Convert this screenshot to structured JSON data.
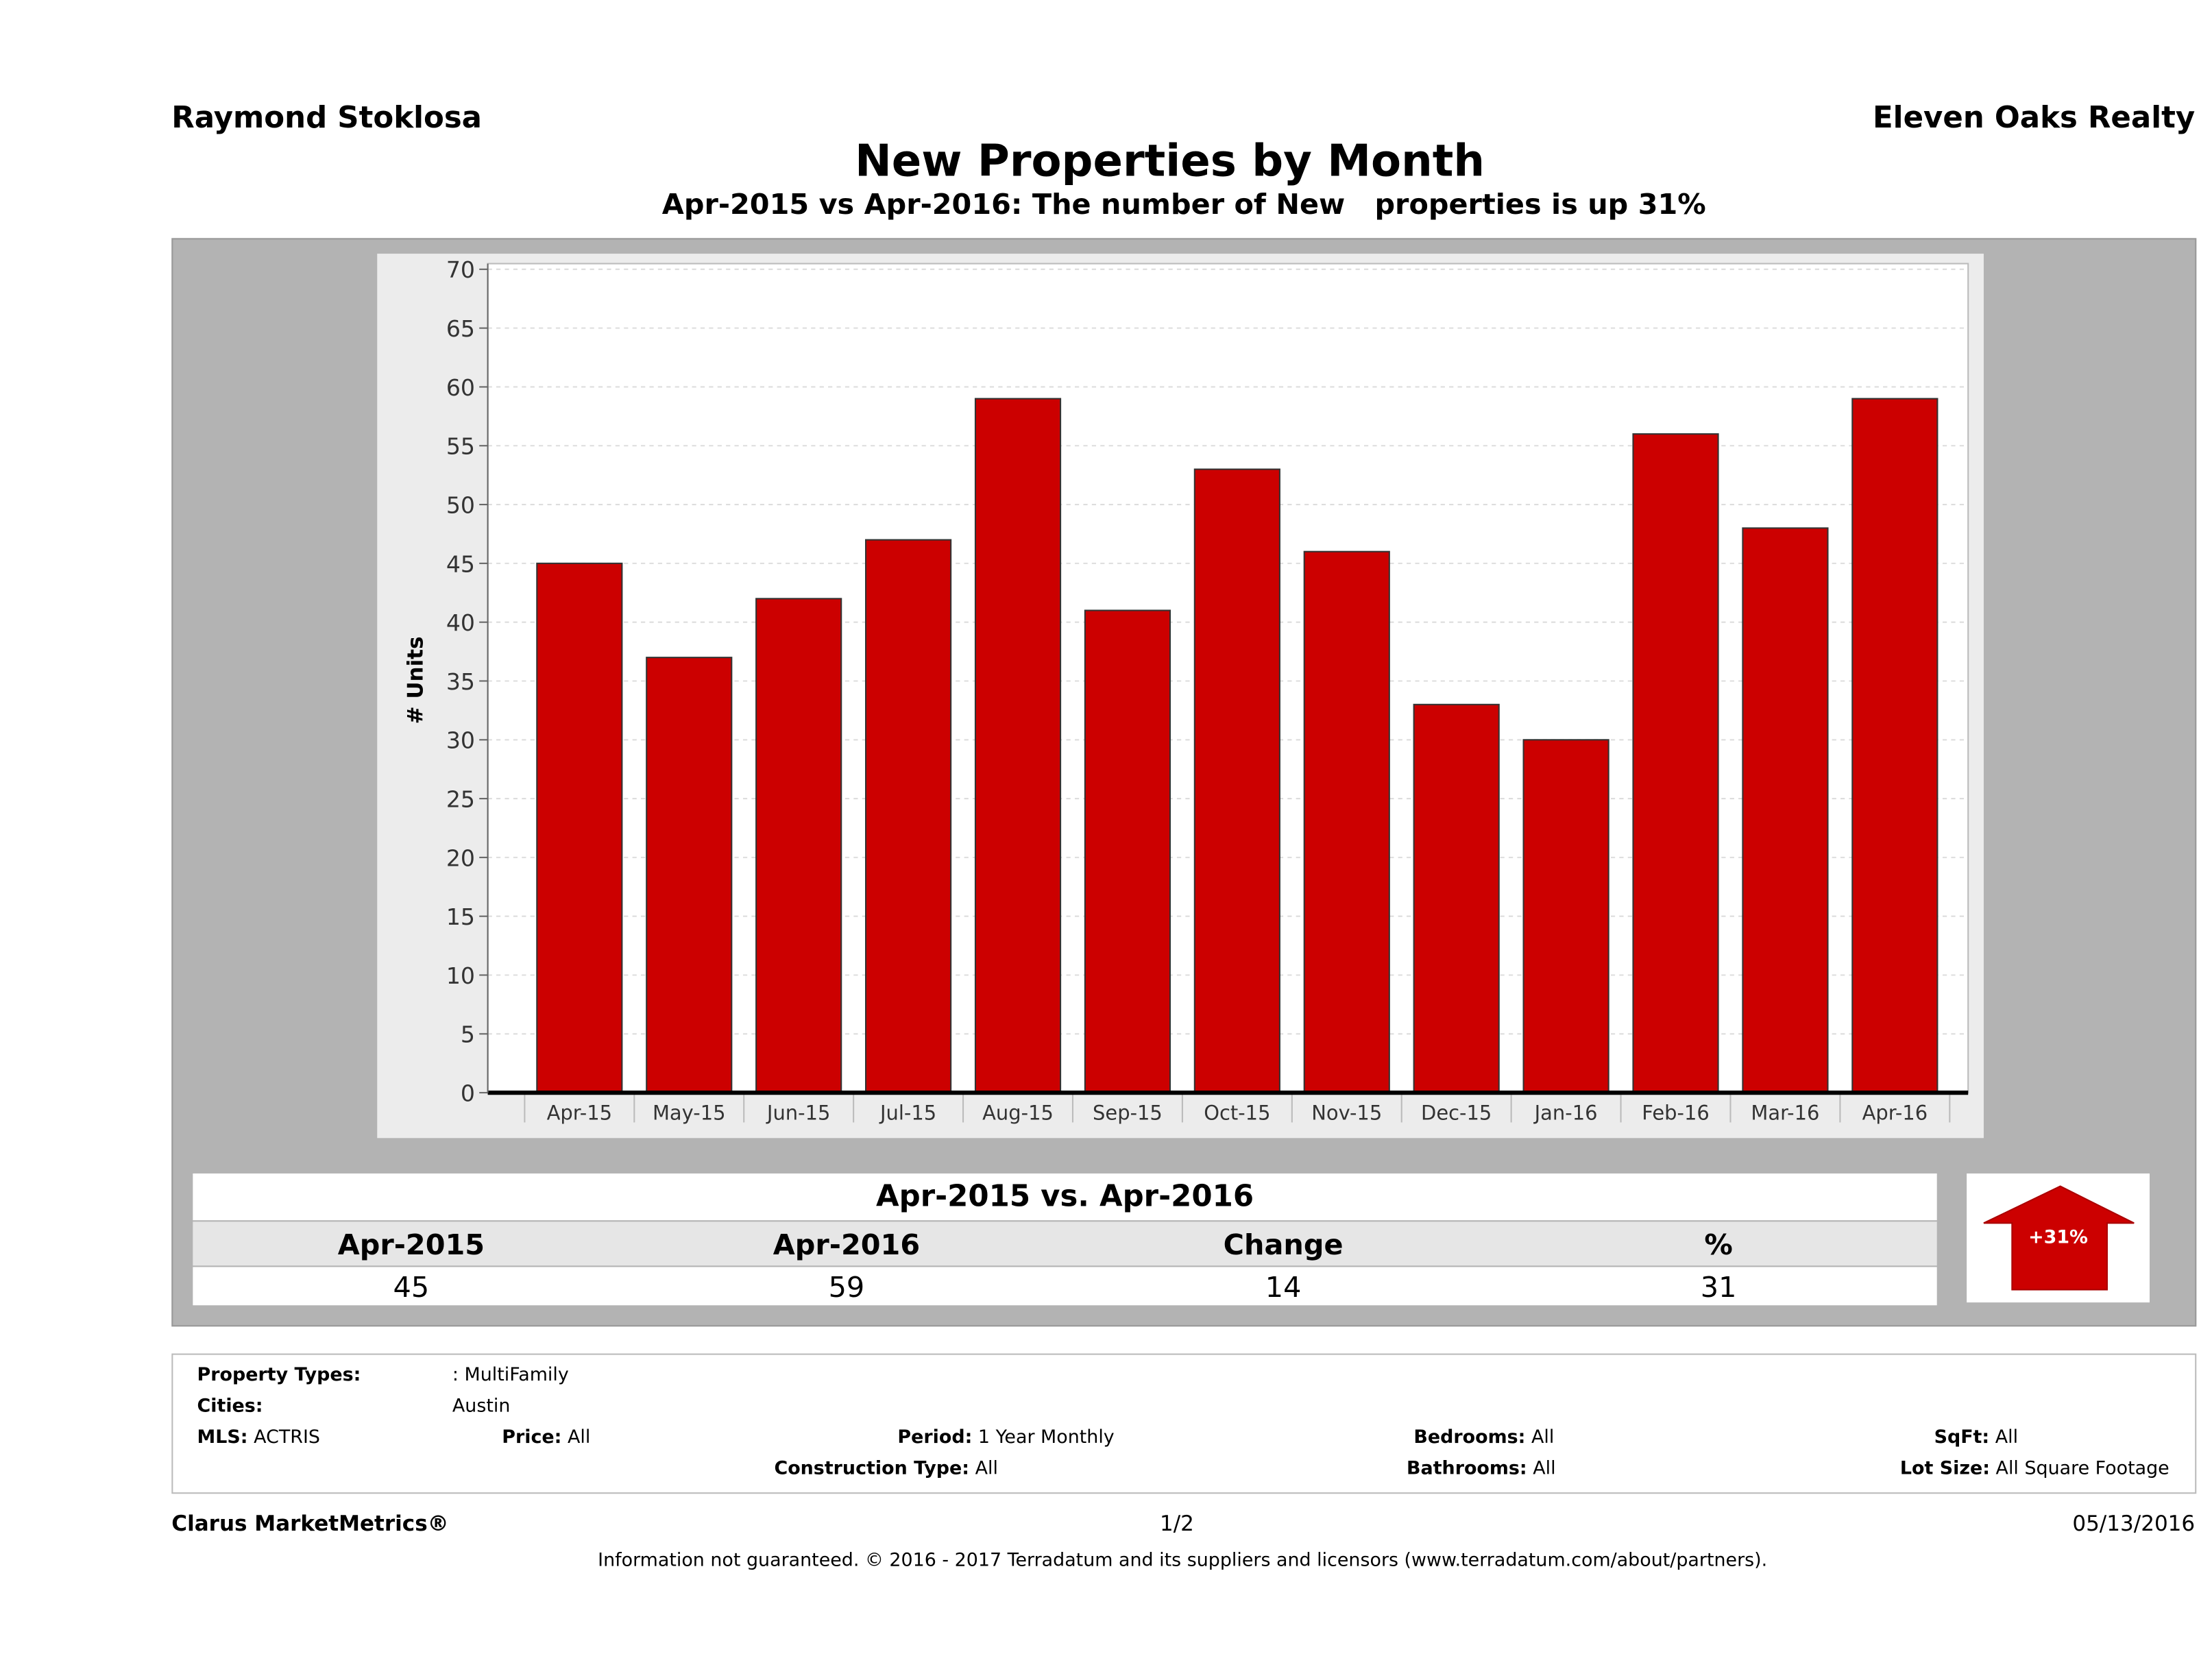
{
  "header": {
    "agent": "Raymond Stoklosa",
    "brokerage": "Eleven Oaks Realty",
    "title": "New Properties by Month",
    "subtitle": "Apr-2015 vs Apr-2016: The number of New   properties is up 31%"
  },
  "chart_data": {
    "type": "bar",
    "ylabel": "# Units",
    "ylim": [
      0,
      70
    ],
    "yticks": [
      0,
      5,
      10,
      15,
      20,
      25,
      30,
      35,
      40,
      45,
      50,
      55,
      60,
      65,
      70
    ],
    "grid": true,
    "bar_color": "#cc0000",
    "categories": [
      "Apr-15",
      "May-15",
      "Jun-15",
      "Jul-15",
      "Aug-15",
      "Sep-15",
      "Oct-15",
      "Nov-15",
      "Dec-15",
      "Jan-16",
      "Feb-16",
      "Mar-16",
      "Apr-16"
    ],
    "values": [
      45,
      37,
      42,
      47,
      59,
      41,
      53,
      46,
      33,
      30,
      56,
      48,
      59
    ]
  },
  "summary": {
    "title": "Apr-2015 vs. Apr-2016",
    "headers": [
      "Apr-2015",
      "Apr-2016",
      "Change",
      "%"
    ],
    "values": [
      "45",
      "59",
      "14",
      "31"
    ],
    "badge": "+31%",
    "badge_icon": "up-arrow-icon",
    "badge_color": "#cc0000"
  },
  "filters": {
    "property_types_label": "Property Types:",
    "property_types": ": MultiFamily",
    "cities_label": "Cities:",
    "cities": "Austin",
    "mls_label": "MLS:",
    "mls": "ACTRIS",
    "price_label": "Price:",
    "price": "All",
    "period_label": "Period:",
    "period": "1 Year Monthly",
    "construction_label": "Construction Type:",
    "construction": "All",
    "bedrooms_label": "Bedrooms:",
    "bedrooms": "All",
    "bathrooms_label": "Bathrooms:",
    "bathrooms": "All",
    "sqft_label": "SqFt:",
    "sqft": "All",
    "lot_label": "Lot Size:",
    "lot": "All Square Footage"
  },
  "footer": {
    "brand": "Clarus MarketMetrics®",
    "page": "1/2",
    "date": "05/13/2016",
    "disclaimer": "Information not guaranteed. © 2016 - 2017 Terradatum and its suppliers and licensors (www.terradatum.com/about/partners)."
  }
}
